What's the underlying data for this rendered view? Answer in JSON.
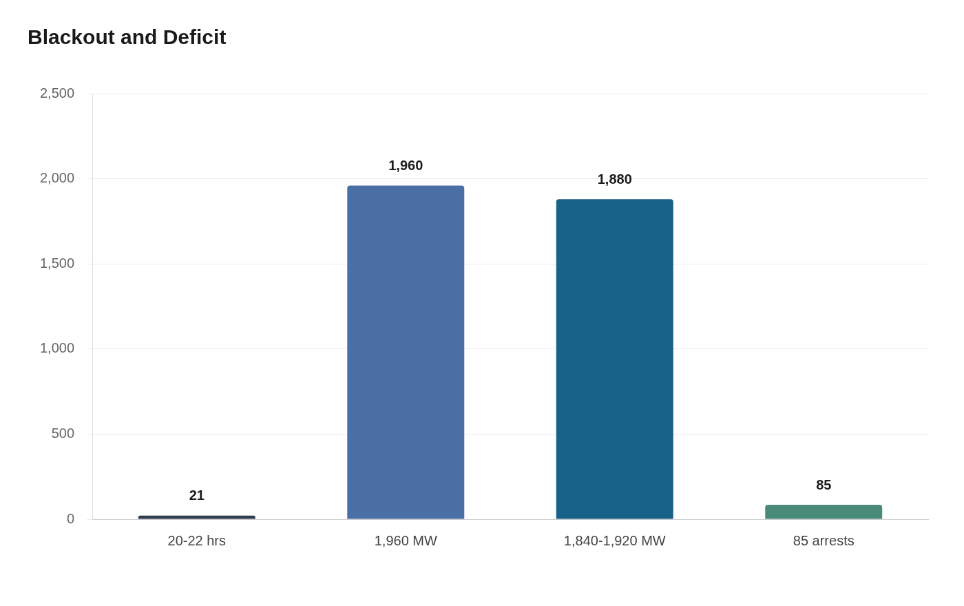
{
  "chart_data": {
    "type": "bar",
    "title": "Blackout and Deficit",
    "categories": [
      "20-22 hrs",
      "1,960 MW",
      "1,840-1,920 MW",
      "85 arrests"
    ],
    "values": [
      21,
      1960,
      1880,
      85
    ],
    "colors": [
      "#2e3d4f",
      "#4a6fa5",
      "#186187",
      "#4a8a78"
    ],
    "ylim": [
      0,
      2500
    ],
    "yticks": [
      {
        "value": 0,
        "label": "0"
      },
      {
        "value": 500,
        "label": "500"
      },
      {
        "value": 1000,
        "label": "1,000"
      },
      {
        "value": 1500,
        "label": "1,500"
      },
      {
        "value": 2000,
        "label": "2,000"
      },
      {
        "value": 2500,
        "label": "2,500"
      }
    ],
    "value_labels": [
      "21",
      "1,960",
      "1,880",
      "85"
    ],
    "grid": "y",
    "legend": false
  }
}
